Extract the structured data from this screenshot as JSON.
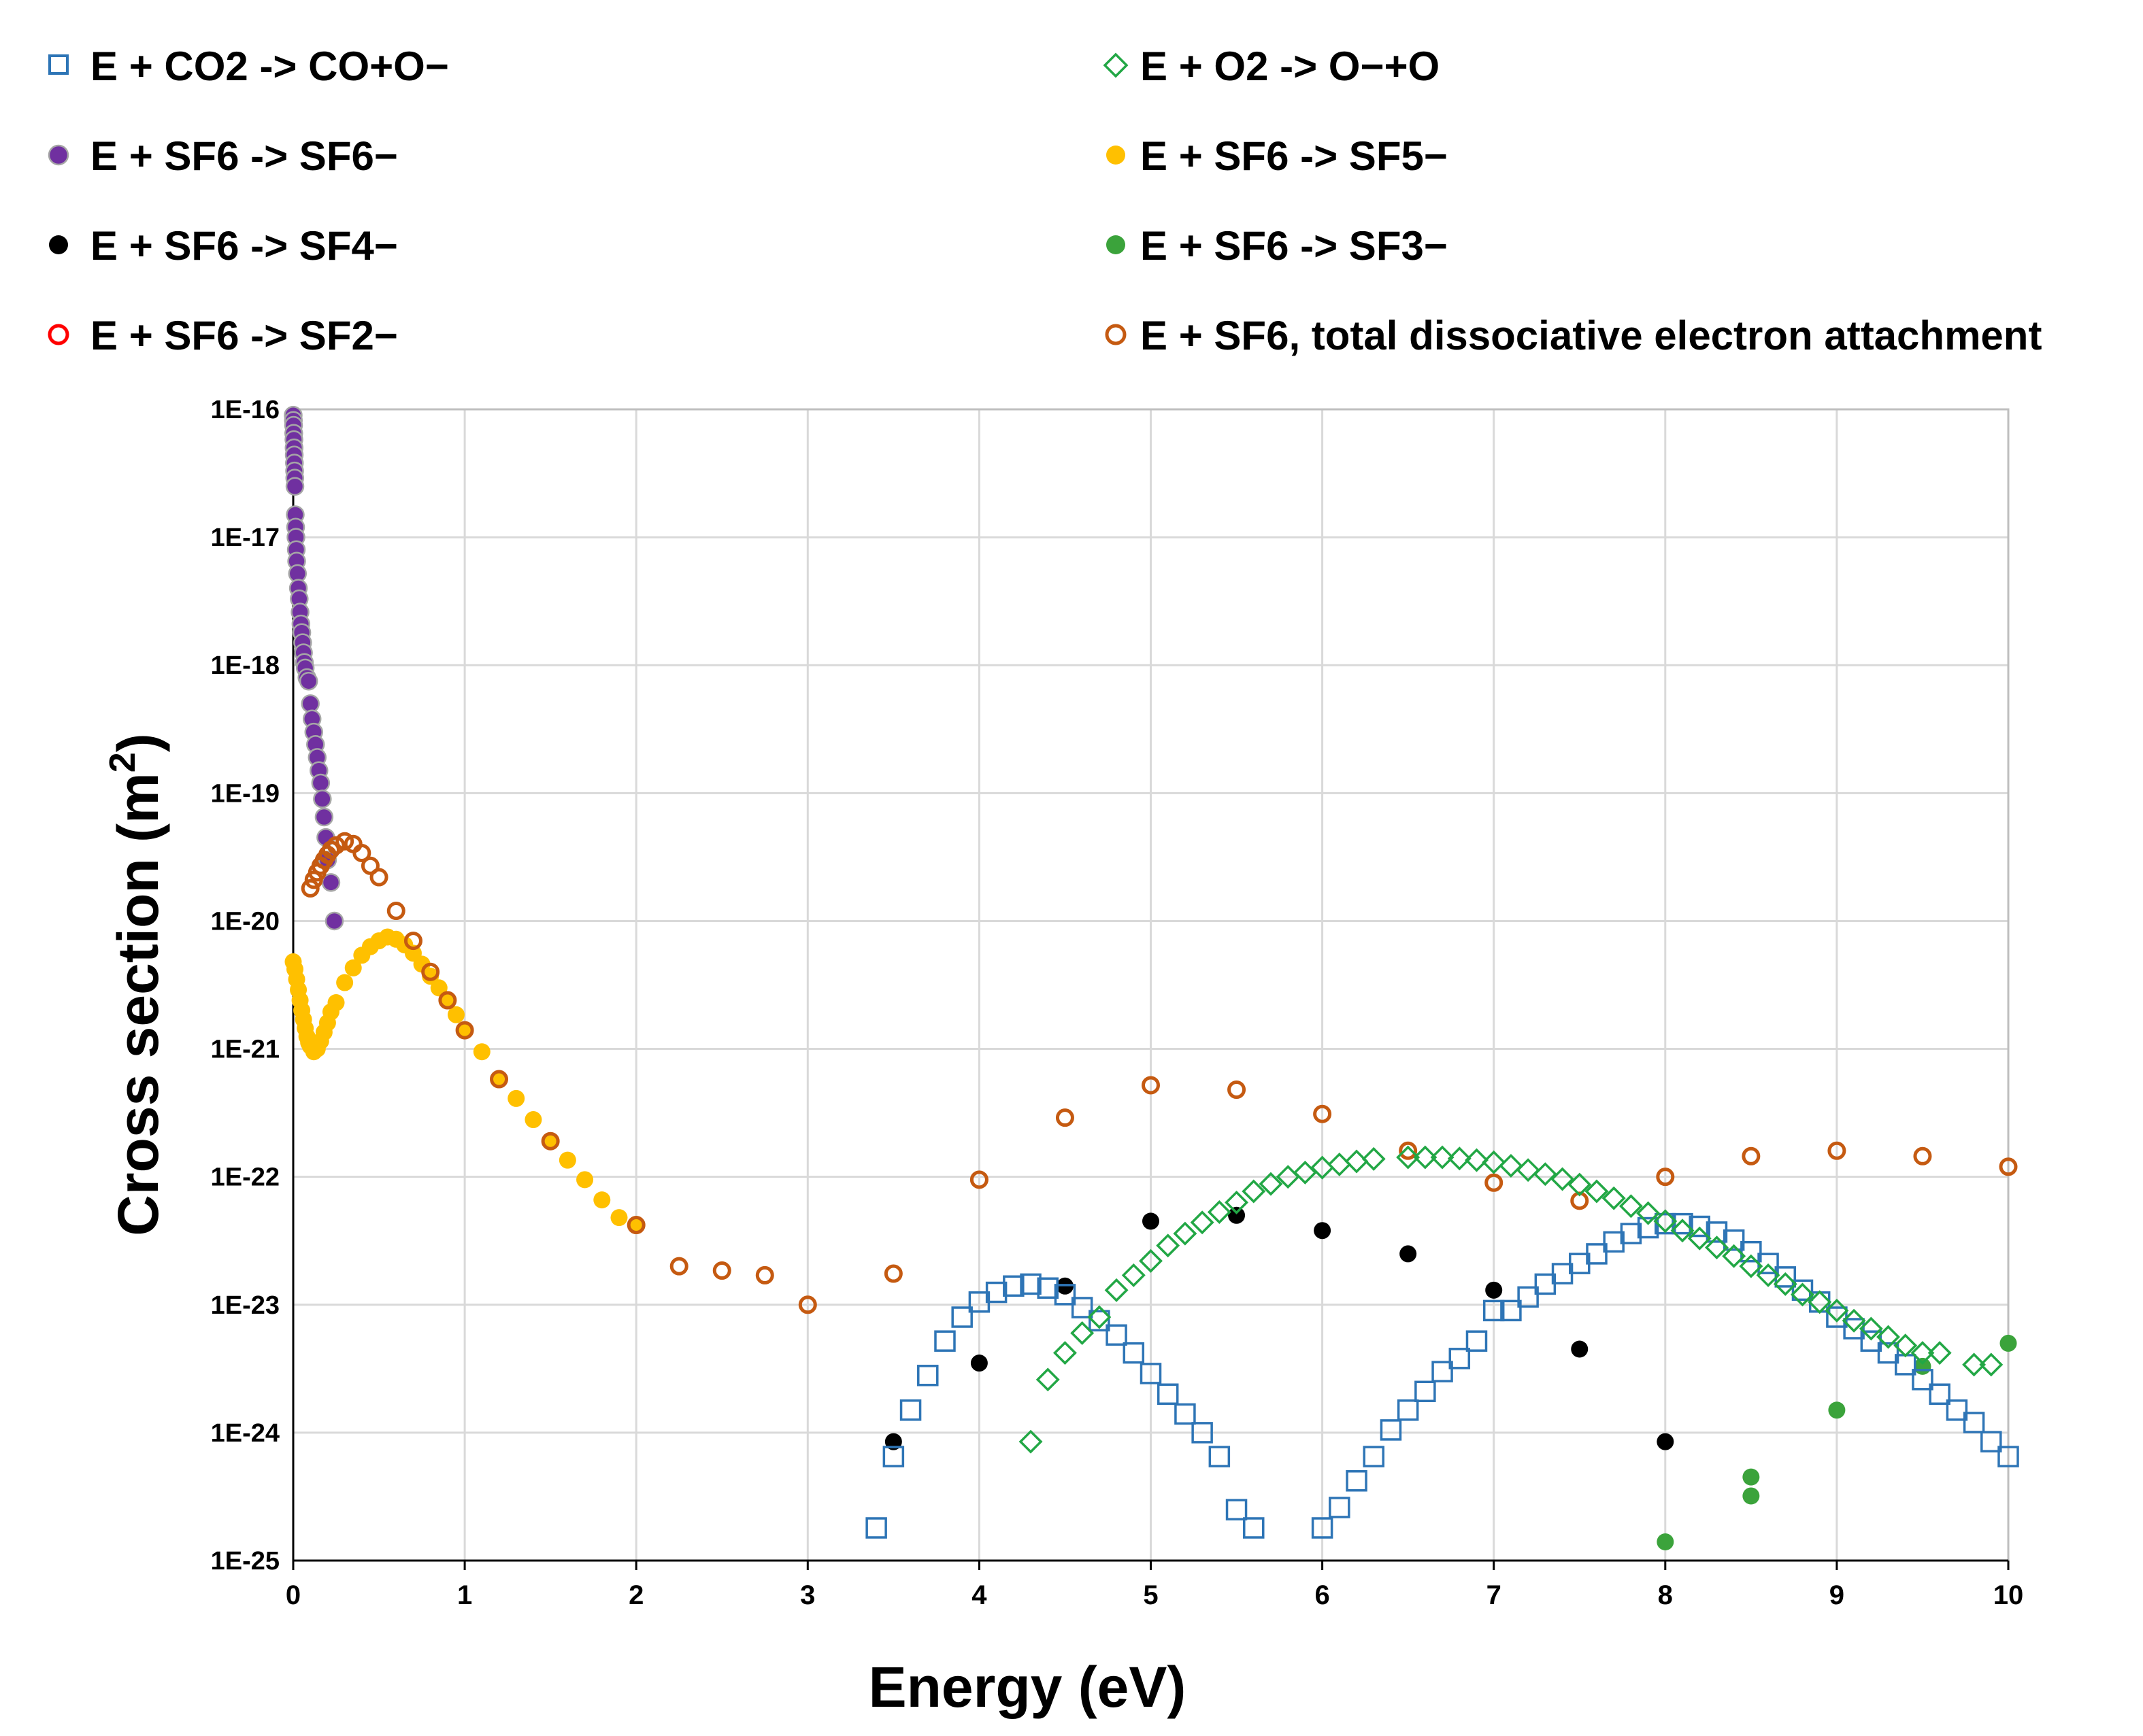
{
  "chart_data": {
    "type": "scatter",
    "title": "",
    "xlabel": "Energy (eV)",
    "ylabel": "Cross section (m",
    "ylabel_sup": "2",
    "ylabel_close": ")",
    "xlim": [
      0,
      10
    ],
    "ylim": [
      1e-25,
      1e-16
    ],
    "yscale": "log",
    "grid": true,
    "x_ticks": [
      0,
      1,
      2,
      3,
      4,
      5,
      6,
      7,
      8,
      9,
      10
    ],
    "x_tick_labels": [
      "0",
      "1",
      "2",
      "3",
      "4",
      "5",
      "6",
      "7",
      "8",
      "9",
      "10"
    ],
    "y_tick_labels": [
      "1E-16",
      "1E-17",
      "1E-18",
      "1E-19",
      "1E-20",
      "1E-21",
      "1E-22",
      "1E-23",
      "1E-24",
      "1E-25"
    ],
    "y_tick_exponents": [
      -16,
      -17,
      -18,
      -19,
      -20,
      -21,
      -22,
      -23,
      -24,
      -25
    ],
    "legend_position": "top",
    "series": [
      {
        "name": "E + CO2 -> CO+O−",
        "marker": "square-open",
        "color": "#2e75b6",
        "points": [
          [
            3.4,
            1.8e-25
          ],
          [
            3.5,
            6.5e-25
          ],
          [
            3.6,
            1.5e-24
          ],
          [
            3.7,
            2.8e-24
          ],
          [
            3.8,
            5.2e-24
          ],
          [
            3.9,
            8e-24
          ],
          [
            4.0,
            1.05e-23
          ],
          [
            4.1,
            1.25e-23
          ],
          [
            4.2,
            1.4e-23
          ],
          [
            4.3,
            1.45e-23
          ],
          [
            4.4,
            1.35e-23
          ],
          [
            4.5,
            1.2e-23
          ],
          [
            4.6,
            9.5e-24
          ],
          [
            4.7,
            7.5e-24
          ],
          [
            4.8,
            5.8e-24
          ],
          [
            4.9,
            4.2e-24
          ],
          [
            5.0,
            2.9e-24
          ],
          [
            5.1,
            2e-24
          ],
          [
            5.2,
            1.4e-24
          ],
          [
            5.3,
            1e-24
          ],
          [
            5.4,
            6.5e-25
          ],
          [
            5.5,
            2.5e-25
          ],
          [
            5.6,
            1.8e-25
          ],
          [
            6.0,
            1.8e-25
          ],
          [
            6.1,
            2.6e-25
          ],
          [
            6.2,
            4.2e-25
          ],
          [
            6.3,
            6.5e-25
          ],
          [
            6.4,
            1.05e-24
          ],
          [
            6.5,
            1.5e-24
          ],
          [
            6.6,
            2.1e-24
          ],
          [
            6.7,
            3e-24
          ],
          [
            6.8,
            3.8e-24
          ],
          [
            6.9,
            5.2e-24
          ],
          [
            7.0,
            9e-24
          ],
          [
            7.1,
            9e-24
          ],
          [
            7.2,
            1.15e-23
          ],
          [
            7.3,
            1.45e-23
          ],
          [
            7.4,
            1.75e-23
          ],
          [
            7.5,
            2.1e-23
          ],
          [
            7.6,
            2.5e-23
          ],
          [
            7.7,
            3.1e-23
          ],
          [
            7.8,
            3.6e-23
          ],
          [
            7.9,
            4e-23
          ],
          [
            8.0,
            4.3e-23
          ],
          [
            8.1,
            4.3e-23
          ],
          [
            8.2,
            4.1e-23
          ],
          [
            8.3,
            3.7e-23
          ],
          [
            8.4,
            3.2e-23
          ],
          [
            8.5,
            2.6e-23
          ],
          [
            8.6,
            2.1e-23
          ],
          [
            8.7,
            1.65e-23
          ],
          [
            8.8,
            1.3e-23
          ],
          [
            8.9,
            1.05e-23
          ],
          [
            9.0,
            8e-24
          ],
          [
            9.1,
            6.5e-24
          ],
          [
            9.2,
            5.2e-24
          ],
          [
            9.3,
            4.2e-24
          ],
          [
            9.4,
            3.4e-24
          ],
          [
            9.5,
            2.6e-24
          ],
          [
            9.6,
            2e-24
          ],
          [
            9.7,
            1.5e-24
          ],
          [
            9.8,
            1.2e-24
          ],
          [
            9.9,
            8.5e-25
          ],
          [
            10.0,
            6.5e-25
          ]
        ]
      },
      {
        "name": "E + O2 -> O−+O",
        "marker": "diamond-open",
        "color": "#22a745",
        "points": [
          [
            4.3,
            8.5e-25
          ],
          [
            4.4,
            2.6e-24
          ],
          [
            4.5,
            4.2e-24
          ],
          [
            4.6,
            6e-24
          ],
          [
            4.7,
            8e-24
          ],
          [
            4.8,
            1.3e-23
          ],
          [
            4.9,
            1.7e-23
          ],
          [
            5.0,
            2.2e-23
          ],
          [
            5.1,
            2.9e-23
          ],
          [
            5.2,
            3.6e-23
          ],
          [
            5.3,
            4.4e-23
          ],
          [
            5.4,
            5.3e-23
          ],
          [
            5.5,
            6.3e-23
          ],
          [
            5.6,
            7.7e-23
          ],
          [
            5.7,
            8.8e-23
          ],
          [
            5.8,
            1e-22
          ],
          [
            5.9,
            1.08e-22
          ],
          [
            6.0,
            1.18e-22
          ],
          [
            6.1,
            1.25e-22
          ],
          [
            6.2,
            1.32e-22
          ],
          [
            6.3,
            1.38e-22
          ],
          [
            6.5,
            1.42e-22
          ],
          [
            6.6,
            1.42e-22
          ],
          [
            6.7,
            1.42e-22
          ],
          [
            6.8,
            1.39e-22
          ],
          [
            6.9,
            1.35e-22
          ],
          [
            7.0,
            1.3e-22
          ],
          [
            7.1,
            1.22e-22
          ],
          [
            7.2,
            1.13e-22
          ],
          [
            7.3,
            1.05e-22
          ],
          [
            7.4,
            9.6e-23
          ],
          [
            7.5,
            8.7e-23
          ],
          [
            7.6,
            7.7e-23
          ],
          [
            7.7,
            6.8e-23
          ],
          [
            7.8,
            5.9e-23
          ],
          [
            7.9,
            5.2e-23
          ],
          [
            8.0,
            4.5e-23
          ],
          [
            8.1,
            3.8e-23
          ],
          [
            8.2,
            3.3e-23
          ],
          [
            8.3,
            2.8e-23
          ],
          [
            8.4,
            2.4e-23
          ],
          [
            8.5,
            2e-23
          ],
          [
            8.6,
            1.7e-23
          ],
          [
            8.7,
            1.45e-23
          ],
          [
            8.8,
            1.2e-23
          ],
          [
            8.9,
            1.05e-23
          ],
          [
            9.0,
            9e-24
          ],
          [
            9.1,
            7.5e-24
          ],
          [
            9.2,
            6.5e-24
          ],
          [
            9.3,
            5.6e-24
          ],
          [
            9.4,
            4.8e-24
          ],
          [
            9.5,
            4.2e-24
          ],
          [
            9.6,
            4.2e-24
          ],
          [
            9.8,
            3.4e-24
          ],
          [
            9.9,
            3.4e-24
          ]
        ]
      },
      {
        "name": "E + SF6 -> SF6−",
        "marker": "circle-filled",
        "color": "#7030a0",
        "edge": "#a6a6a6",
        "points": [
          [
            0.0,
            9e-17
          ],
          [
            0.001,
            8.2e-17
          ],
          [
            0.002,
            7.5e-17
          ],
          [
            0.003,
            6.5e-17
          ],
          [
            0.004,
            5.8e-17
          ],
          [
            0.005,
            5e-17
          ],
          [
            0.006,
            4.4e-17
          ],
          [
            0.007,
            3.8e-17
          ],
          [
            0.008,
            3.3e-17
          ],
          [
            0.009,
            2.9e-17
          ],
          [
            0.01,
            2.5e-17
          ],
          [
            0.012,
            1.5e-17
          ],
          [
            0.014,
            1.2e-17
          ],
          [
            0.016,
            1e-17
          ],
          [
            0.018,
            8e-18
          ],
          [
            0.02,
            6.5e-18
          ],
          [
            0.025,
            5.2e-18
          ],
          [
            0.03,
            4e-18
          ],
          [
            0.035,
            3.3e-18
          ],
          [
            0.04,
            2.6e-18
          ],
          [
            0.045,
            2.1e-18
          ],
          [
            0.05,
            1.8e-18
          ],
          [
            0.055,
            1.5e-18
          ],
          [
            0.06,
            1.25e-18
          ],
          [
            0.065,
            1.05e-18
          ],
          [
            0.07,
            9.5e-19
          ],
          [
            0.08,
            8e-19
          ],
          [
            0.09,
            7.5e-19
          ],
          [
            0.1,
            5e-19
          ],
          [
            0.11,
            3.8e-19
          ],
          [
            0.12,
            3e-19
          ],
          [
            0.13,
            2.4e-19
          ],
          [
            0.14,
            1.9e-19
          ],
          [
            0.15,
            1.5e-19
          ],
          [
            0.16,
            1.2e-19
          ],
          [
            0.17,
            9e-20
          ],
          [
            0.18,
            6.5e-20
          ],
          [
            0.19,
            4.5e-20
          ],
          [
            0.2,
            3e-20
          ],
          [
            0.22,
            2e-20
          ],
          [
            0.24,
            1e-20
          ]
        ]
      },
      {
        "name": "E + SF6 -> SF5−",
        "marker": "circle-filled",
        "color": "#ffc000",
        "points": [
          [
            0.0,
            4.8e-21
          ],
          [
            0.01,
            4.2e-21
          ],
          [
            0.02,
            3.5e-21
          ],
          [
            0.03,
            2.9e-21
          ],
          [
            0.04,
            2.4e-21
          ],
          [
            0.05,
            2e-21
          ],
          [
            0.06,
            1.7e-21
          ],
          [
            0.07,
            1.45e-21
          ],
          [
            0.08,
            1.25e-21
          ],
          [
            0.09,
            1.12e-21
          ],
          [
            0.1,
            1.05e-21
          ],
          [
            0.12,
            9.5e-22
          ],
          [
            0.14,
            1e-21
          ],
          [
            0.16,
            1.15e-21
          ],
          [
            0.18,
            1.35e-21
          ],
          [
            0.2,
            1.6e-21
          ],
          [
            0.22,
            1.95e-21
          ],
          [
            0.25,
            2.3e-21
          ],
          [
            0.3,
            3.3e-21
          ],
          [
            0.35,
            4.3e-21
          ],
          [
            0.4,
            5.4e-21
          ],
          [
            0.45,
            6.3e-21
          ],
          [
            0.5,
            7e-21
          ],
          [
            0.55,
            7.5e-21
          ],
          [
            0.6,
            7.2e-21
          ],
          [
            0.65,
            6.5e-21
          ],
          [
            0.7,
            5.6e-21
          ],
          [
            0.75,
            4.6e-21
          ],
          [
            0.8,
            3.7e-21
          ],
          [
            0.85,
            3e-21
          ],
          [
            0.9,
            2.4e-21
          ],
          [
            0.95,
            1.85e-21
          ],
          [
            1.0,
            1.4e-21
          ],
          [
            1.1,
            9.5e-22
          ],
          [
            1.2,
            5.8e-22
          ],
          [
            1.3,
            4.1e-22
          ],
          [
            1.4,
            2.8e-22
          ],
          [
            1.5,
            1.9e-22
          ],
          [
            1.6,
            1.35e-22
          ],
          [
            1.7,
            9.5e-23
          ],
          [
            1.8,
            6.6e-23
          ],
          [
            1.9,
            4.8e-23
          ],
          [
            2.0,
            4.2e-23
          ]
        ]
      },
      {
        "name": "E + SF6 -> SF4−",
        "marker": "circle-filled",
        "color": "#000000",
        "points": [
          [
            3.5,
            8.5e-25
          ],
          [
            4.0,
            3.5e-24
          ],
          [
            4.5,
            1.4e-23
          ],
          [
            5.0,
            4.5e-23
          ],
          [
            5.5,
            5e-23
          ],
          [
            6.0,
            3.8e-23
          ],
          [
            6.5,
            2.5e-23
          ],
          [
            7.0,
            1.3e-23
          ],
          [
            7.5,
            4.5e-24
          ],
          [
            8.0,
            8.5e-25
          ]
        ]
      },
      {
        "name": "E + SF6 -> SF3−",
        "marker": "circle-filled",
        "color": "#3ba33b",
        "points": [
          [
            8.0,
            1.4e-25
          ],
          [
            8.5,
            3.2e-25
          ],
          [
            8.5,
            4.5e-25
          ],
          [
            9.0,
            1.5e-24
          ],
          [
            9.5,
            3.3e-24
          ],
          [
            10.0,
            5e-24
          ]
        ]
      },
      {
        "name": "E + SF6 -> SF2−",
        "marker": "circle-open",
        "color": "#ff0000",
        "points": []
      },
      {
        "name": "E + SF6, total dissociative electron attachment",
        "marker": "circle-open",
        "color": "#c55a11",
        "points": [
          [
            0.1,
            1.8e-20
          ],
          [
            0.12,
            2.1e-20
          ],
          [
            0.14,
            2.4e-20
          ],
          [
            0.16,
            2.7e-20
          ],
          [
            0.18,
            3e-20
          ],
          [
            0.2,
            3.3e-20
          ],
          [
            0.22,
            3.6e-20
          ],
          [
            0.25,
            3.9e-20
          ],
          [
            0.3,
            4.2e-20
          ],
          [
            0.35,
            4e-20
          ],
          [
            0.4,
            3.4e-20
          ],
          [
            0.45,
            2.7e-20
          ],
          [
            0.5,
            2.2e-20
          ],
          [
            0.6,
            1.2e-20
          ],
          [
            0.7,
            7e-21
          ],
          [
            0.8,
            4e-21
          ],
          [
            0.9,
            2.4e-21
          ],
          [
            1.0,
            1.4e-21
          ],
          [
            1.2,
            5.8e-22
          ],
          [
            1.5,
            1.9e-22
          ],
          [
            2.0,
            4.2e-23
          ],
          [
            2.25,
            2e-23
          ],
          [
            2.5,
            1.85e-23
          ],
          [
            2.75,
            1.7e-23
          ],
          [
            3.0,
            1e-23
          ],
          [
            3.5,
            1.75e-23
          ],
          [
            4.0,
            9.5e-23
          ],
          [
            4.5,
            2.9e-22
          ],
          [
            5.0,
            5.2e-22
          ],
          [
            5.5,
            4.8e-22
          ],
          [
            6.0,
            3.1e-22
          ],
          [
            6.5,
            1.6e-22
          ],
          [
            7.0,
            9e-23
          ],
          [
            7.5,
            6.5e-23
          ],
          [
            8.0,
            1e-22
          ],
          [
            8.5,
            1.45e-22
          ],
          [
            9.0,
            1.6e-22
          ],
          [
            9.5,
            1.45e-22
          ],
          [
            10.0,
            1.2e-22
          ]
        ]
      }
    ]
  }
}
